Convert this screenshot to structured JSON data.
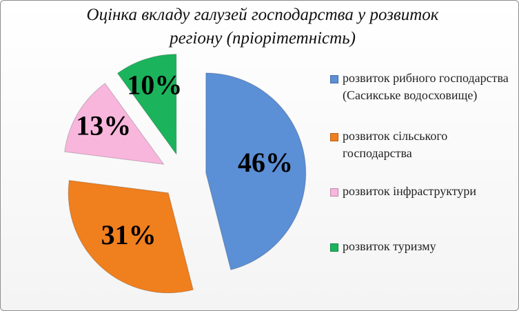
{
  "chart_data": {
    "type": "pie",
    "title": "Оцінка вкладу галузей господарства у розвиток регіону (пріорітетність)",
    "categories": [
      "розвиток рибного господарства (Сасикське водосховище)",
      "розвиток сільського господарства",
      "розвиток інфраструктури",
      "розвиток туризму"
    ],
    "values": [
      46,
      31,
      13,
      10
    ],
    "value_labels": [
      "46%",
      "31%",
      "13%",
      "10%"
    ],
    "colors": [
      "#5b8fd6",
      "#f07f1e",
      "#f8b6dc",
      "#1bb35c"
    ],
    "legend": "right"
  }
}
